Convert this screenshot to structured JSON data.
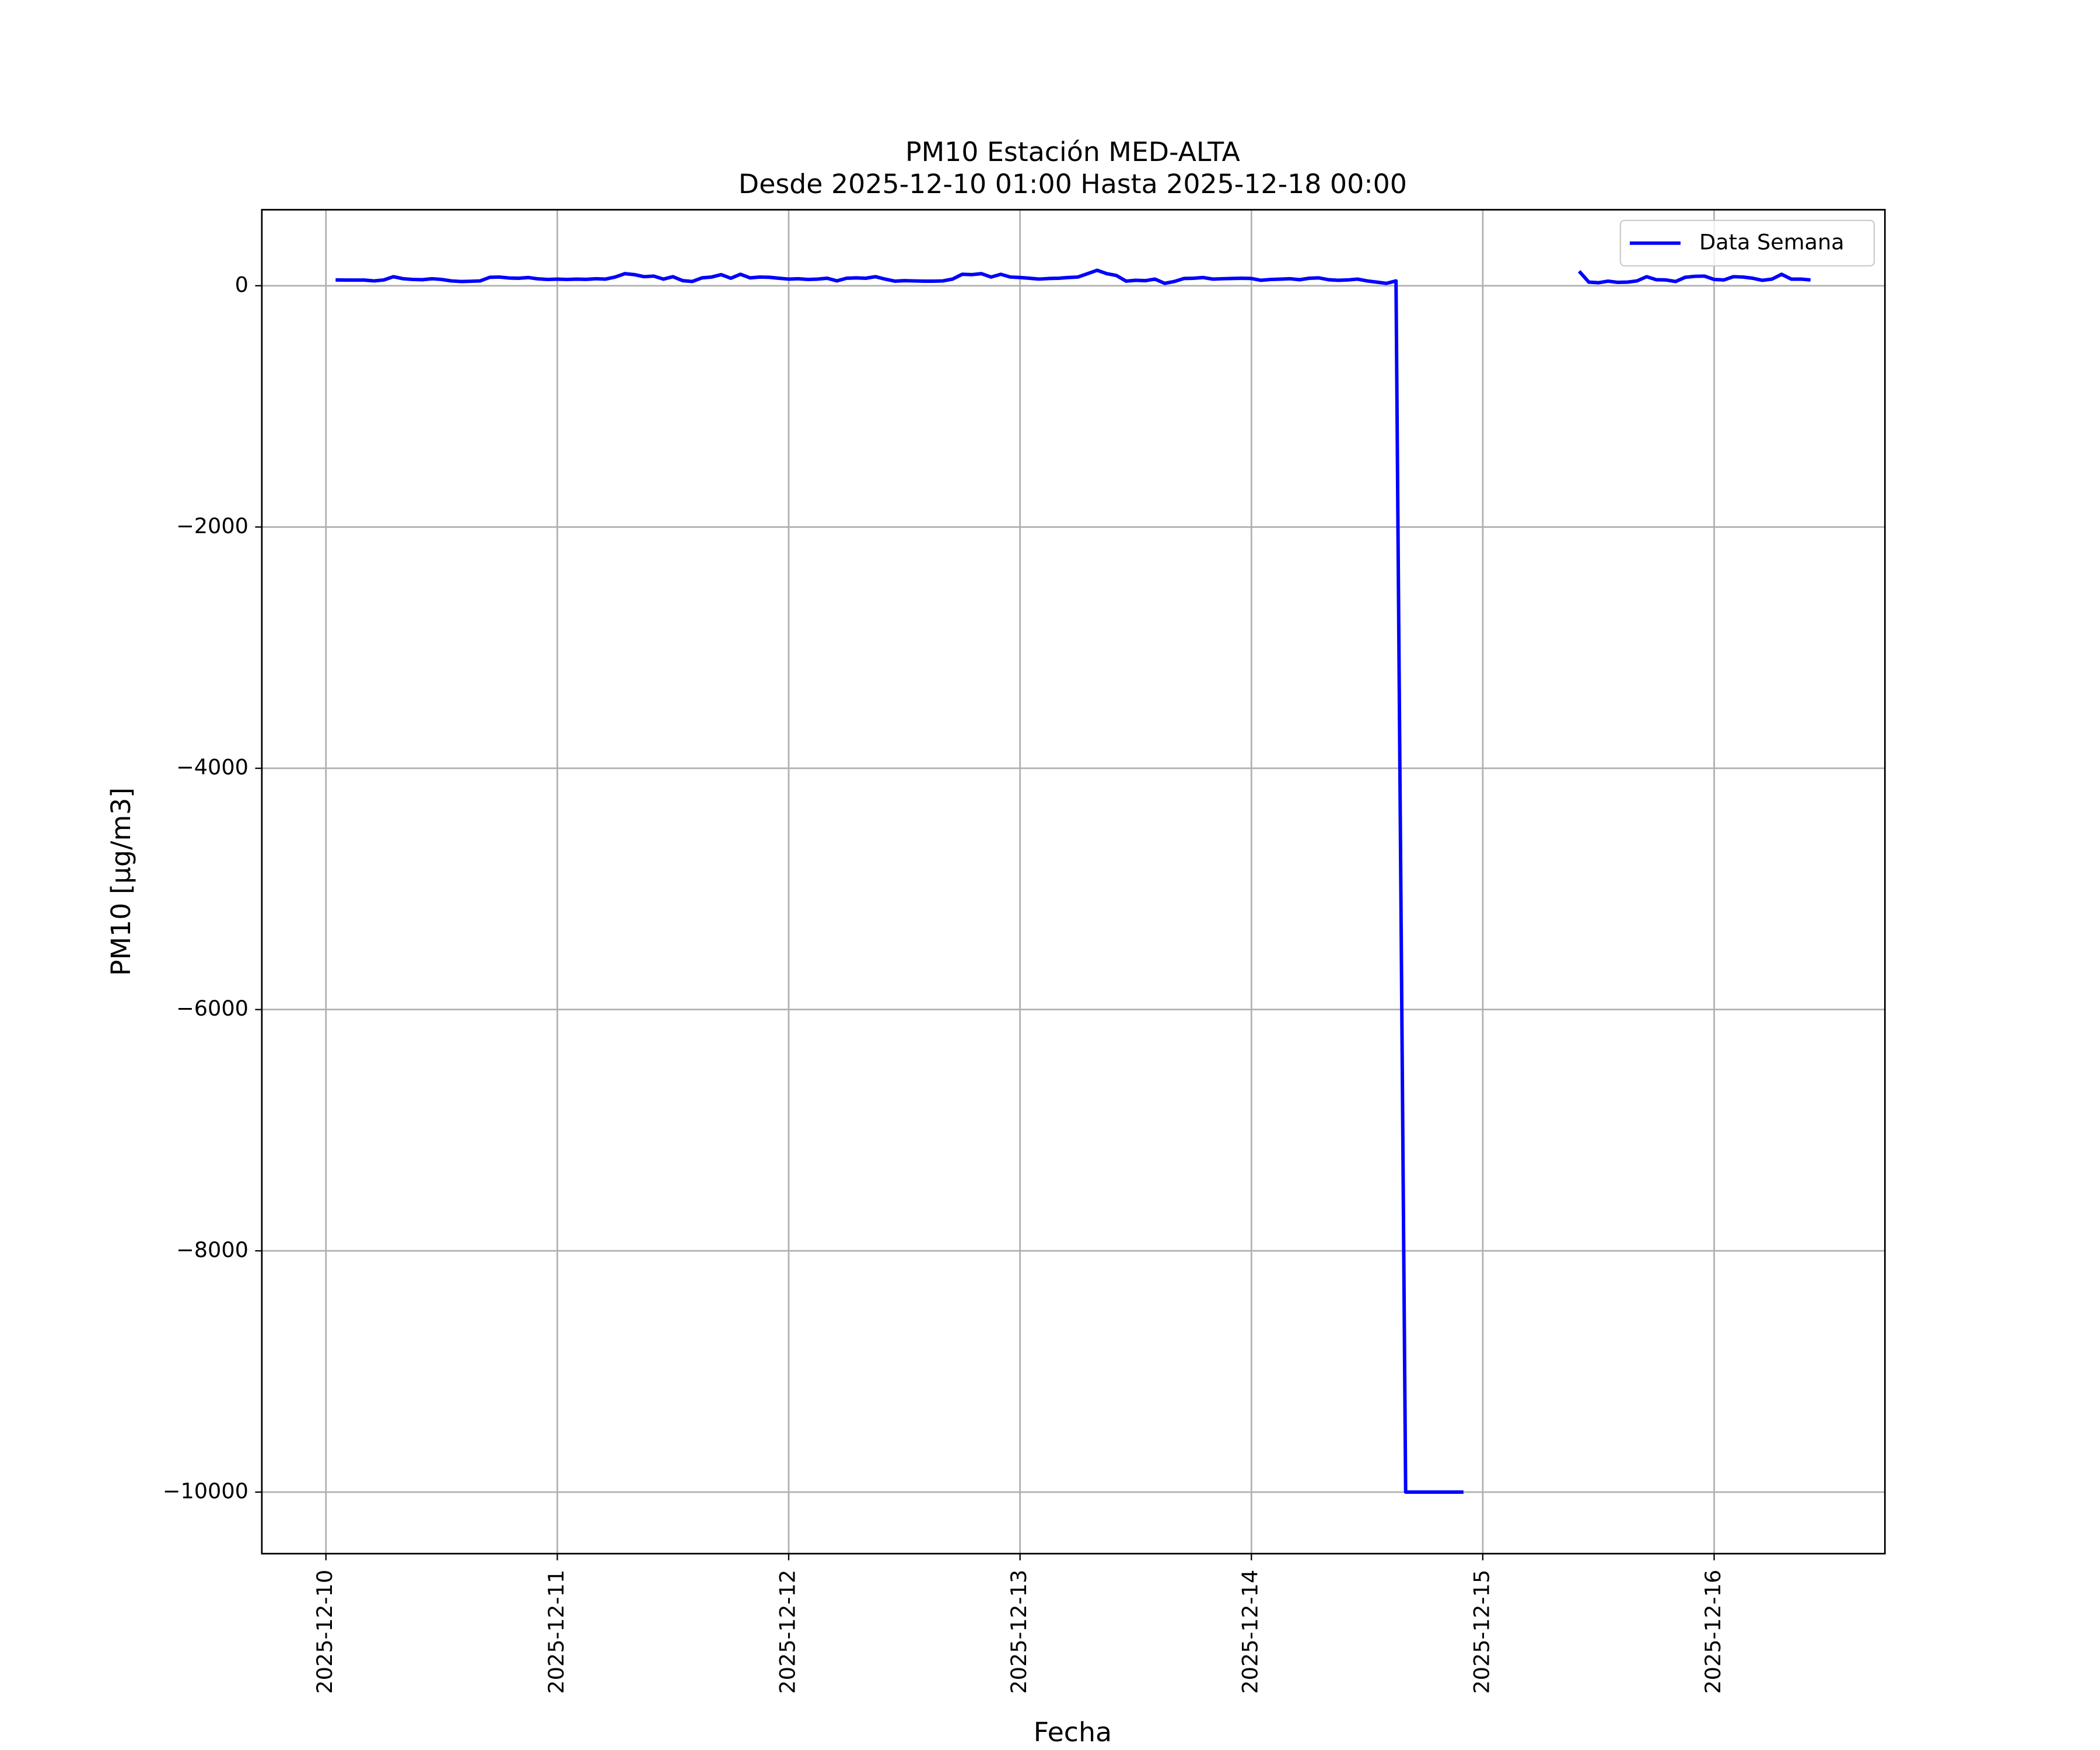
{
  "chart_data": {
    "type": "line",
    "title": "PM10 Estación MED-ALTA",
    "subtitle": "Desde 2025-12-10 01:00 Hasta 2025-12-18 00:00",
    "x_label": "Fecha",
    "y_label": "PM10 [μg/m3]",
    "x": [
      "2025-12-10 01:00",
      "2025-12-10 02:00",
      "2025-12-10 03:00",
      "2025-12-10 04:00",
      "2025-12-10 05:00",
      "2025-12-10 06:00",
      "2025-12-10 07:00",
      "2025-12-10 08:00",
      "2025-12-10 09:00",
      "2025-12-10 10:00",
      "2025-12-10 11:00",
      "2025-12-10 12:00",
      "2025-12-10 13:00",
      "2025-12-10 14:00",
      "2025-12-10 15:00",
      "2025-12-10 16:00",
      "2025-12-10 17:00",
      "2025-12-10 18:00",
      "2025-12-10 19:00",
      "2025-12-10 20:00",
      "2025-12-10 21:00",
      "2025-12-10 22:00",
      "2025-12-10 23:00",
      "2025-12-11 00:00",
      "2025-12-11 01:00",
      "2025-12-11 02:00",
      "2025-12-11 03:00",
      "2025-12-11 04:00",
      "2025-12-11 05:00",
      "2025-12-11 06:00",
      "2025-12-11 07:00",
      "2025-12-11 08:00",
      "2025-12-11 09:00",
      "2025-12-11 10:00",
      "2025-12-11 11:00",
      "2025-12-11 12:00",
      "2025-12-11 13:00",
      "2025-12-11 14:00",
      "2025-12-11 15:00",
      "2025-12-11 16:00",
      "2025-12-11 17:00",
      "2025-12-11 18:00",
      "2025-12-11 19:00",
      "2025-12-11 20:00",
      "2025-12-11 21:00",
      "2025-12-11 22:00",
      "2025-12-11 23:00",
      "2025-12-12 00:00",
      "2025-12-12 01:00",
      "2025-12-12 02:00",
      "2025-12-12 03:00",
      "2025-12-12 04:00",
      "2025-12-12 05:00",
      "2025-12-12 06:00",
      "2025-12-12 07:00",
      "2025-12-12 08:00",
      "2025-12-12 09:00",
      "2025-12-12 10:00",
      "2025-12-12 11:00",
      "2025-12-12 12:00",
      "2025-12-12 13:00",
      "2025-12-12 14:00",
      "2025-12-12 15:00",
      "2025-12-12 16:00",
      "2025-12-12 17:00",
      "2025-12-12 18:00",
      "2025-12-12 19:00",
      "2025-12-12 20:00",
      "2025-12-12 21:00",
      "2025-12-12 22:00",
      "2025-12-12 23:00",
      "2025-12-13 00:00",
      "2025-12-13 01:00",
      "2025-12-13 02:00",
      "2025-12-13 03:00",
      "2025-12-13 04:00",
      "2025-12-13 05:00",
      "2025-12-13 06:00",
      "2025-12-13 07:00",
      "2025-12-13 08:00",
      "2025-12-13 09:00",
      "2025-12-13 10:00",
      "2025-12-13 11:00",
      "2025-12-13 12:00",
      "2025-12-13 13:00",
      "2025-12-13 14:00",
      "2025-12-13 15:00",
      "2025-12-13 16:00",
      "2025-12-13 17:00",
      "2025-12-13 18:00",
      "2025-12-13 19:00",
      "2025-12-13 20:00",
      "2025-12-13 21:00",
      "2025-12-13 22:00",
      "2025-12-13 23:00",
      "2025-12-14 00:00",
      "2025-12-14 01:00",
      "2025-12-14 02:00",
      "2025-12-14 03:00",
      "2025-12-14 04:00",
      "2025-12-14 05:00",
      "2025-12-14 06:00",
      "2025-12-14 07:00",
      "2025-12-14 08:00",
      "2025-12-14 09:00",
      "2025-12-14 10:00",
      "2025-12-14 11:00",
      "2025-12-14 12:00",
      "2025-12-14 13:00",
      "2025-12-14 14:00",
      "2025-12-14 15:00",
      "2025-12-14 16:00",
      "2025-12-14 17:00",
      "2025-12-14 18:00",
      "2025-12-14 19:00",
      "2025-12-14 20:00",
      "2025-12-14 21:00",
      "2025-12-14 22:00",
      "2025-12-14 23:00",
      "2025-12-15 00:00",
      "2025-12-15 01:00",
      "2025-12-15 02:00",
      "2025-12-15 03:00",
      "2025-12-15 04:00",
      "2025-12-15 05:00",
      "2025-12-15 06:00",
      "2025-12-15 07:00",
      "2025-12-15 08:00",
      "2025-12-15 09:00",
      "2025-12-15 10:00",
      "2025-12-15 11:00",
      "2025-12-15 12:00",
      "2025-12-15 13:00",
      "2025-12-15 14:00",
      "2025-12-15 15:00",
      "2025-12-15 16:00",
      "2025-12-15 17:00",
      "2025-12-15 18:00",
      "2025-12-15 19:00",
      "2025-12-15 20:00",
      "2025-12-15 21:00",
      "2025-12-15 22:00",
      "2025-12-15 23:00",
      "2025-12-16 00:00",
      "2025-12-16 01:00",
      "2025-12-16 02:00",
      "2025-12-16 03:00",
      "2025-12-16 04:00",
      "2025-12-16 05:00",
      "2025-12-16 06:00",
      "2025-12-16 07:00",
      "2025-12-16 08:00",
      "2025-12-16 09:00",
      "2025-12-16 10:00"
    ],
    "series": [
      {
        "name": "Data Semana",
        "color": "#0000ff",
        "values": [
          48,
          47,
          47,
          47,
          40,
          48,
          75,
          58,
          52,
          50,
          58,
          52,
          40,
          35,
          37,
          40,
          70,
          72,
          64,
          62,
          68,
          57,
          52,
          55,
          52,
          55,
          53,
          58,
          55,
          72,
          100,
          92,
          75,
          80,
          55,
          75,
          42,
          35,
          65,
          72,
          92,
          62,
          95,
          65,
          72,
          70,
          62,
          55,
          58,
          52,
          55,
          62,
          40,
          62,
          65,
          62,
          75,
          55,
          38,
          42,
          40,
          38,
          38,
          40,
          55,
          95,
          92,
          100,
          72,
          95,
          72,
          68,
          62,
          55,
          60,
          62,
          68,
          72,
          100,
          128,
          100,
          85,
          38,
          45,
          42,
          55,
          20,
          35,
          60,
          62,
          68,
          55,
          58,
          60,
          62,
          60,
          45,
          52,
          55,
          58,
          50,
          62,
          65,
          50,
          45,
          48,
          55,
          40,
          30,
          20,
          40,
          -10000,
          -10000,
          -10000,
          -10000,
          -10000,
          -10000,
          -10000,
          null,
          null,
          null,
          null,
          null,
          null,
          null,
          null,
          null,
          null,
          null,
          120,
          30,
          25,
          38,
          28,
          30,
          40,
          75,
          50,
          48,
          35,
          70,
          78,
          80,
          52,
          48,
          75,
          72,
          62,
          45,
          55,
          95,
          55,
          55,
          48
        ]
      }
    ],
    "xlim": [
      "2025-12-09 17:21",
      "2025-12-16 17:43"
    ],
    "xticks": [
      "2025-12-10",
      "2025-12-11",
      "2025-12-12",
      "2025-12-13",
      "2025-12-14",
      "2025-12-15",
      "2025-12-16"
    ],
    "ylim": [
      -10510,
      630
    ],
    "yticks": [
      {
        "value": -10000,
        "label": "−10000"
      },
      {
        "value": -8000,
        "label": "−8000"
      },
      {
        "value": -6000,
        "label": "−6000"
      },
      {
        "value": -4000,
        "label": "−4000"
      },
      {
        "value": -2000,
        "label": "−2000"
      },
      0
    ],
    "grid": true,
    "legend": "upper right"
  }
}
